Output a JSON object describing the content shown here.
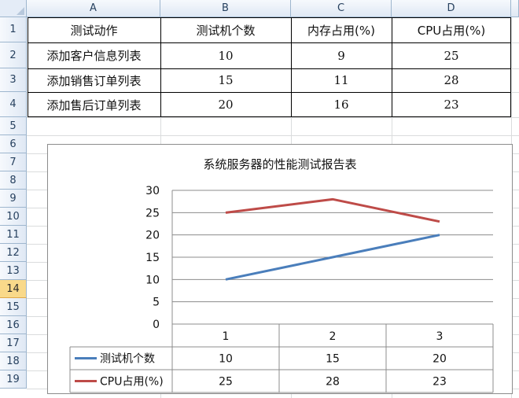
{
  "columns": [
    "A",
    "B",
    "C",
    "D"
  ],
  "rows": [
    "1",
    "2",
    "3",
    "4",
    "5",
    "6",
    "7",
    "8",
    "9",
    "10",
    "11",
    "12",
    "13",
    "14",
    "15",
    "16",
    "17",
    "18",
    "19"
  ],
  "selected_row": "14",
  "table": {
    "headers": [
      "测试动作",
      "测试机个数",
      "内存占用(%)",
      "CPU占用(%)"
    ],
    "rows": [
      [
        "添加客户信息列表",
        "10",
        "9",
        "25"
      ],
      [
        "添加销售订单列表",
        "15",
        "11",
        "28"
      ],
      [
        "添加售后订单列表",
        "20",
        "16",
        "23"
      ]
    ]
  },
  "chart_data": {
    "type": "line",
    "title": "系统服务器的性能测试报告表",
    "categories": [
      "1",
      "2",
      "3"
    ],
    "series": [
      {
        "name": "测试机个数",
        "values": [
          10,
          15,
          20
        ],
        "color": "#4a7ebb"
      },
      {
        "name": "CPU占用(%)",
        "values": [
          25,
          28,
          23
        ],
        "color": "#be4b48"
      }
    ],
    "ylim": [
      0,
      30
    ],
    "yticks": [
      "0",
      "5",
      "10",
      "15",
      "20",
      "25",
      "30"
    ],
    "grid": true,
    "legend": "data-table"
  }
}
